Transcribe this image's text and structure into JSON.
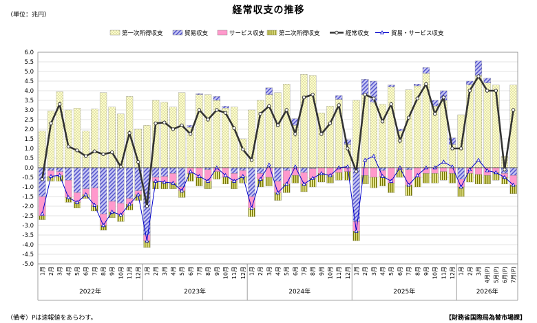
{
  "header": {
    "title": "経常収支の推移",
    "unit": "（単位：兆円）"
  },
  "footer": {
    "note": "（備考）Pは速報値をあらわす。",
    "source": "【財務省国際局為替市場課】"
  },
  "chart_data": {
    "type": "bar",
    "stacked": true,
    "yrange": [
      -5.0,
      6.0
    ],
    "ytick_step": 0.5,
    "grid": true,
    "legend_position": "top",
    "categories": [
      "1月",
      "2月",
      "3月",
      "4月",
      "5月",
      "6月",
      "7月",
      "8月",
      "9月",
      "10月",
      "11月",
      "12月",
      "1月",
      "2月",
      "3月",
      "4月",
      "5月",
      "6月",
      "7月",
      "8月",
      "9月",
      "10月",
      "11月",
      "12月",
      "1月",
      "2月",
      "3月",
      "4月",
      "5月",
      "6月",
      "7月",
      "8月",
      "9月",
      "10月",
      "11月",
      "12月",
      "1月",
      "2月",
      "3月",
      "4月",
      "5月",
      "6月",
      "7月",
      "8月",
      "9月",
      "10月",
      "11月",
      "12月",
      "1月",
      "2月",
      "3月",
      "4月(P)",
      "5月(P)",
      "6月(P)",
      "7月(P)"
    ],
    "years": [
      {
        "label": "2022年",
        "count": 12
      },
      {
        "label": "2023年",
        "count": 12
      },
      {
        "label": "2024年",
        "count": 12
      },
      {
        "label": "2025年",
        "count": 12
      },
      {
        "label": "2026年",
        "count": 7
      }
    ],
    "series": [
      {
        "name": "第一次所得収支",
        "kind": "bar",
        "color": "#ffffcc",
        "values": [
          1.9,
          2.95,
          3.95,
          3.0,
          3.1,
          1.9,
          3.05,
          3.9,
          3.15,
          2.8,
          3.7,
          2.0,
          2.2,
          3.5,
          3.4,
          3.15,
          3.9,
          2.1,
          3.8,
          3.8,
          3.5,
          3.1,
          3.15,
          1.5,
          3.0,
          3.5,
          3.8,
          3.9,
          4.35,
          2.2,
          4.85,
          4.8,
          2.85,
          3.2,
          3.55,
          1.2,
          3.5,
          3.8,
          3.4,
          3.3,
          4.2,
          1.9,
          4.05,
          4.25,
          4.9,
          3.2,
          3.5,
          1.2,
          2.75,
          4.3,
          4.8,
          4.4,
          4.3,
          0.6,
          4.3
        ]
      },
      {
        "name": "貿易収支",
        "kind": "bar",
        "color": "#aaaaee",
        "values": [
          -1.5,
          -0.15,
          -0.2,
          -0.65,
          -1.3,
          -1.1,
          -1.05,
          -2.4,
          -1.75,
          -1.85,
          -1.6,
          -1.2,
          -3.5,
          -0.5,
          -0.45,
          -0.3,
          -1.0,
          0.1,
          0.05,
          -0.1,
          0.2,
          0.1,
          -0.3,
          -0.15,
          -1.5,
          -0.3,
          0.35,
          -0.7,
          -0.15,
          0.35,
          -0.25,
          -0.05,
          0.0,
          0.0,
          0.2,
          0.25,
          -2.8,
          0.8,
          1.1,
          -0.15,
          0.1,
          0.1,
          -0.1,
          0.1,
          0.3,
          0.3,
          0.5,
          0.35,
          -0.6,
          0.2,
          0.75,
          0.25,
          0.0,
          -0.3,
          -0.4
        ]
      },
      {
        "name": "サービス収支",
        "kind": "bar",
        "color": "#ff99cc",
        "values": [
          -1.0,
          -0.3,
          -0.2,
          -0.9,
          -0.5,
          -0.3,
          -0.9,
          -0.6,
          -0.55,
          -0.6,
          -0.3,
          -0.2,
          -0.3,
          -0.2,
          -0.3,
          -0.5,
          -0.2,
          -0.3,
          -0.5,
          -0.6,
          -0.2,
          -0.5,
          -0.4,
          -0.3,
          -0.6,
          -0.3,
          -0.5,
          -0.6,
          -0.7,
          -0.4,
          -0.6,
          -0.5,
          -0.3,
          -0.4,
          -0.25,
          -0.2,
          -0.5,
          -0.4,
          -0.5,
          -0.3,
          -0.8,
          -0.1,
          -0.8,
          -0.5,
          -0.3,
          -0.3,
          -0.2,
          -0.3,
          -0.4,
          -0.3,
          -0.35,
          -0.4,
          -0.25,
          -0.2,
          -0.5
        ]
      },
      {
        "name": "第二次所得収支",
        "kind": "bar",
        "color": "#999933",
        "values": [
          -0.2,
          -0.25,
          -0.3,
          -0.25,
          -0.3,
          -0.2,
          -0.3,
          -0.25,
          -0.3,
          -0.35,
          -0.3,
          -0.3,
          -0.35,
          -0.4,
          -0.35,
          -0.3,
          -0.35,
          -0.4,
          -0.45,
          -0.4,
          -0.4,
          -0.35,
          -0.4,
          -0.35,
          -0.45,
          -0.4,
          -0.45,
          -0.4,
          -0.45,
          -0.4,
          -0.4,
          -0.45,
          -0.45,
          -0.4,
          -0.4,
          -0.45,
          -0.5,
          -0.45,
          -0.55,
          -0.5,
          -0.5,
          -0.4,
          -0.55,
          -0.5,
          -0.5,
          -0.5,
          -0.45,
          -0.5,
          -0.5,
          -0.45,
          -0.5,
          -0.45,
          -0.4,
          -0.35,
          -0.45
        ]
      },
      {
        "name": "経常収支",
        "kind": "line",
        "color": "#333333",
        "values": [
          -0.6,
          2.3,
          3.3,
          1.1,
          0.9,
          0.6,
          0.85,
          0.7,
          0.8,
          0.05,
          1.8,
          0.3,
          -2.0,
          2.3,
          2.35,
          2.0,
          2.2,
          1.75,
          3.0,
          2.5,
          3.0,
          2.85,
          2.05,
          0.95,
          0.4,
          2.8,
          3.2,
          2.2,
          3.0,
          1.75,
          3.65,
          3.8,
          1.75,
          2.3,
          3.25,
          1.0,
          -0.2,
          3.8,
          3.6,
          2.4,
          3.3,
          1.4,
          2.6,
          3.6,
          4.35,
          2.8,
          3.65,
          1.0,
          1.0,
          4.0,
          4.75,
          4.0,
          4.0,
          -0.1,
          3.0
        ]
      },
      {
        "name": "貿易・サービス収支",
        "kind": "line",
        "color": "#0000cc",
        "values": [
          -2.4,
          -0.45,
          -0.4,
          -1.55,
          -1.8,
          -1.4,
          -1.95,
          -3.0,
          -2.3,
          -2.45,
          -1.9,
          -1.4,
          -3.8,
          -0.7,
          -0.75,
          -0.8,
          -1.2,
          -0.2,
          -0.45,
          -0.7,
          0.0,
          -0.4,
          -0.7,
          -0.45,
          -2.1,
          -0.6,
          0.15,
          -1.3,
          -0.85,
          0.05,
          -0.85,
          -0.55,
          -0.3,
          -0.4,
          0.0,
          0.05,
          -3.3,
          0.4,
          0.6,
          -0.45,
          -0.7,
          0.0,
          -0.9,
          -0.4,
          0.0,
          0.0,
          0.3,
          0.05,
          -1.0,
          -0.1,
          0.4,
          -0.15,
          -0.25,
          -0.5,
          -0.9
        ]
      }
    ]
  }
}
